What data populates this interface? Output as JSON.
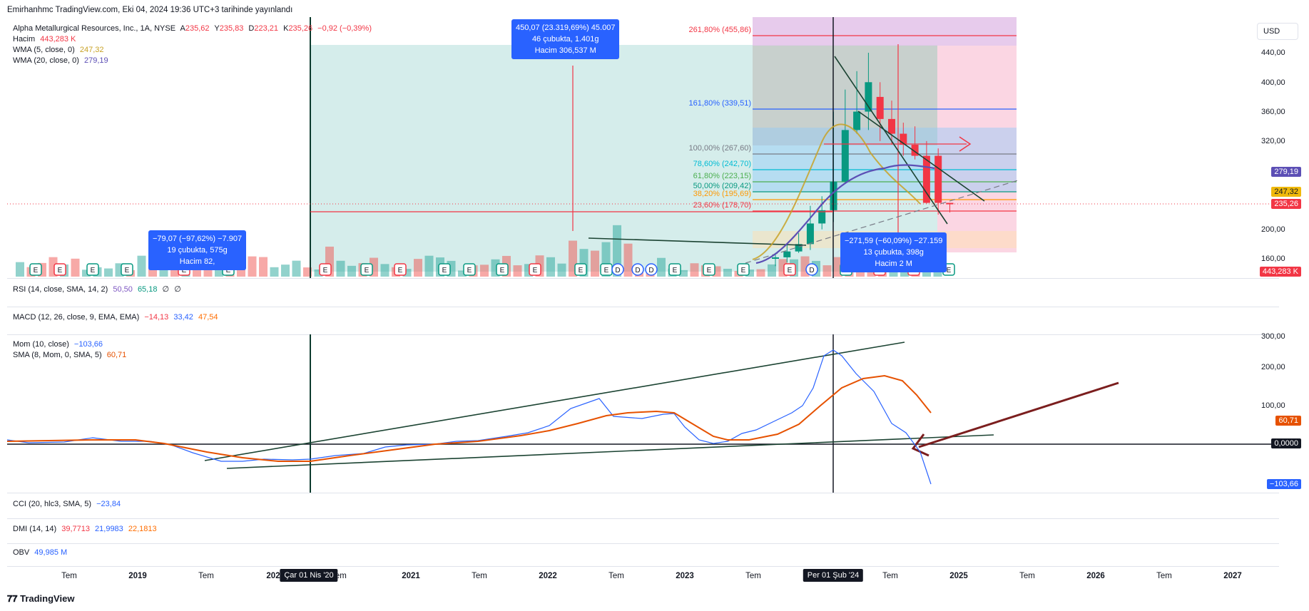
{
  "header": {
    "publish_line": "Emirhanhmc TradingView.com, Eki 04, 2024 19:36 UTC+3 tarihinde yayınlandı"
  },
  "currency_button": "USD",
  "main_legend": {
    "symbol": "Alpha Metallurgical Resources, Inc., 1A, NYSE",
    "open_label": "A",
    "open": "235,62",
    "high_label": "Y",
    "high": "235,83",
    "low_label": "D",
    "low": "223,21",
    "close_label": "K",
    "close": "235,26",
    "change": "−0,92 (−0,39%)",
    "volume_label": "Hacim",
    "volume": "443,283 K",
    "wma5_label": "WMA (5, close, 0)",
    "wma5": "247,32",
    "wma20_label": "WMA (20, close, 0)",
    "wma20": "279,19"
  },
  "price_axis": {
    "ticks": [
      "440,00",
      "400,00",
      "360,00",
      "320,00",
      "200,00",
      "160,00"
    ],
    "badges": {
      "wma20": "279,19",
      "wma5": "247,32",
      "last": "235,26",
      "volume": "443,283 K"
    }
  },
  "fib_levels": [
    {
      "label": "261,80% (455,86)",
      "color": "#f23645"
    },
    {
      "label": "161,80% (339,51)",
      "color": "#2962ff"
    },
    {
      "label": "100,00% (267,60)",
      "color": "#787b86"
    },
    {
      "label": "78,60% (242,70)",
      "color": "#00bcd4"
    },
    {
      "label": "61,80% (223,15)",
      "color": "#4caf50"
    },
    {
      "label": "50,00% (209,42)",
      "color": "#089981"
    },
    {
      "label": "38,20% (195,69)",
      "color": "#ff9800"
    },
    {
      "label": "23,60% (178,70)",
      "color": "#f23645"
    }
  ],
  "measure_boxes": [
    {
      "line1": "450,07 (23.319,69%) 45.007",
      "line2": "46 çubukta, 1.401g",
      "line3": "Hacim 306,537 M"
    },
    {
      "line1": "−79,07 (−97,62%) −7.907",
      "line2": "19 çubukta, 575g",
      "line3": "Hacim 82,"
    },
    {
      "line1": "−271,59 (−60,09%) −27.159",
      "line2": "13 çubukta, 398g",
      "line3": "Hacim 2 M"
    }
  ],
  "indicators": {
    "rsi": {
      "label": "RSI (14, close, SMA, 14, 2)",
      "v1": "50,50",
      "v2": "65,18",
      "v3": "∅",
      "v4": "∅"
    },
    "macd": {
      "label": "MACD (12, 26, close, 9, EMA, EMA)",
      "v1": "−14,13",
      "v2": "33,42",
      "v3": "47,54"
    },
    "mom": {
      "label": "Mom (10, close)",
      "value": "−103,66"
    },
    "mom_sma": {
      "label": "SMA (8, Mom, 0, SMA, 5)",
      "value": "60,71"
    },
    "cci": {
      "label": "CCI (20, hlc3, SMA, 5)",
      "value": "−23,84"
    },
    "dmi": {
      "label": "DMI (14, 14)",
      "v1": "39,7713",
      "v2": "21,9983",
      "v3": "22,1813"
    },
    "obv": {
      "label": "OBV",
      "value": "49,985 M"
    }
  },
  "mom_axis": {
    "ticks": [
      "300,00",
      "200,00",
      "100,00"
    ],
    "badges": {
      "sma": "60,71",
      "zero": "0,0000",
      "mom": "−103,66"
    }
  },
  "time_axis": {
    "labels": [
      "Tem",
      "2019",
      "Tem",
      "202",
      "Tem",
      "2021",
      "Tem",
      "2022",
      "Tem",
      "2023",
      "Tem",
      "2024",
      "Tem",
      "2025",
      "Tem",
      "2026",
      "Tem",
      "2027"
    ],
    "highlight_left": "Çar 01 Nis '20",
    "highlight_right": "Per 01 Şub '24"
  },
  "footer": {
    "logo": "TradingView"
  },
  "chart_data": [
    {
      "type": "candlestick",
      "title": "Alpha Metallurgical Resources, Inc., 1A, NYSE",
      "interval": "1 month",
      "x": [
        "2023-07",
        "2023-08",
        "2023-09",
        "2023-10",
        "2023-11",
        "2023-12",
        "2024-01",
        "2024-02",
        "2024-03",
        "2024-04",
        "2024-05",
        "2024-06",
        "2024-07",
        "2024-08",
        "2024-09",
        "2024-10"
      ],
      "open": [
        160,
        162,
        170,
        180,
        208,
        226,
        265,
        335,
        360,
        380,
        350,
        330,
        315,
        300,
        300,
        236
      ],
      "high": [
        168,
        180,
        195,
        232,
        245,
        360,
        390,
        415,
        440,
        400,
        375,
        345,
        340,
        320,
        310,
        236
      ],
      "low": [
        150,
        155,
        168,
        172,
        200,
        210,
        262,
        330,
        335,
        320,
        315,
        300,
        295,
        235,
        220,
        223
      ],
      "close": [
        162,
        170,
        180,
        208,
        226,
        265,
        335,
        360,
        400,
        350,
        330,
        315,
        300,
        236,
        236,
        235.26
      ],
      "ylim": [
        140,
        460
      ],
      "price_ticks": [
        160,
        200,
        320,
        360,
        400,
        440
      ],
      "last_price": 235.26,
      "wma5": 247.32,
      "wma20": 279.19
    },
    {
      "type": "line",
      "title": "Mom (10, close)",
      "series": [
        {
          "name": "Mom (10, close)",
          "last": -103.66
        },
        {
          "name": "SMA (8, Mom, 0, SMA, 5)",
          "last": 60.71
        }
      ],
      "ylim": [
        -120,
        300
      ],
      "ticks": [
        100,
        200,
        300
      ],
      "zero_line": 0
    }
  ]
}
